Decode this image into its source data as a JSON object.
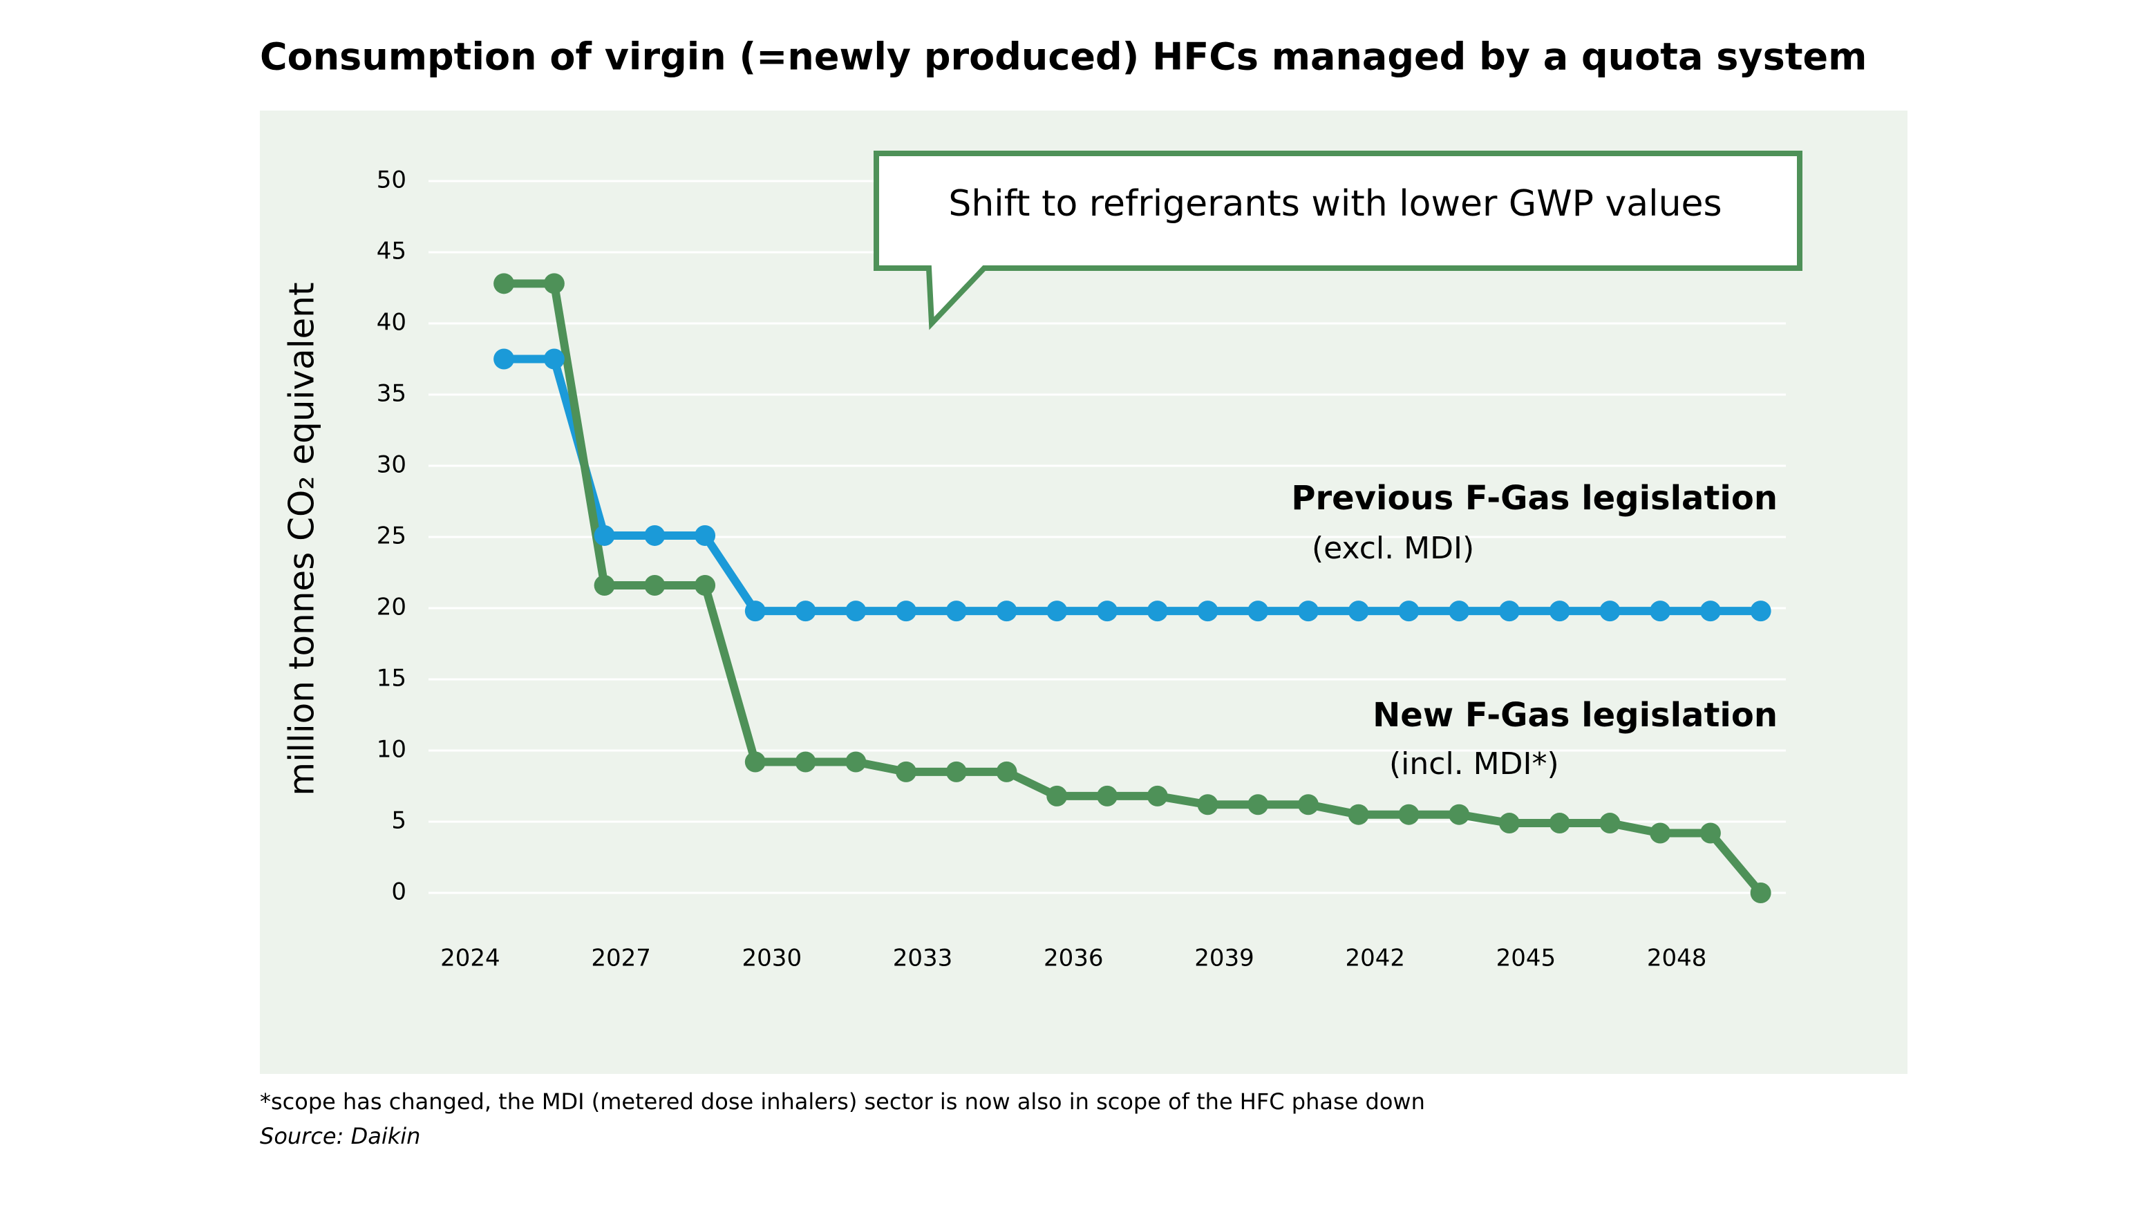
{
  "chart_data": {
    "type": "line",
    "title": "Consumption of virgin (=newly produced) HFCs managed by a quota system",
    "y_label": "million tonnes CO₂ equivalent",
    "annotation": "Shift to refrigerants with lower GWP values",
    "x": [
      2025,
      2026,
      2027,
      2028,
      2029,
      2030,
      2031,
      2032,
      2033,
      2034,
      2035,
      2036,
      2037,
      2038,
      2039,
      2040,
      2041,
      2042,
      2043,
      2044,
      2045,
      2046,
      2047,
      2048,
      2049,
      2050
    ],
    "series": [
      {
        "name": "Previous F-Gas legislation",
        "note": "(excl. MDI)",
        "color": "#1b9ad8",
        "values": [
          37.5,
          37.5,
          25.1,
          25.1,
          25.1,
          19.8,
          19.8,
          19.8,
          19.8,
          19.8,
          19.8,
          19.8,
          19.8,
          19.8,
          19.8,
          19.8,
          19.8,
          19.8,
          19.8,
          19.8,
          19.8,
          19.8,
          19.8,
          19.8,
          19.8,
          19.8
        ]
      },
      {
        "name": "New F-Gas legislation",
        "note": "(incl. MDI*)",
        "color": "#4e9158",
        "values": [
          42.8,
          42.8,
          21.6,
          21.6,
          21.6,
          9.2,
          9.2,
          9.2,
          8.5,
          8.5,
          8.5,
          6.8,
          6.8,
          6.8,
          6.2,
          6.2,
          6.2,
          5.5,
          5.5,
          5.5,
          4.9,
          4.9,
          4.9,
          4.2,
          4.2,
          0
        ]
      }
    ],
    "xlim": [
      2023.5,
      2050.5
    ],
    "xticks": [
      2024,
      2027,
      2030,
      2033,
      2036,
      2039,
      2042,
      2045,
      2048
    ],
    "ylim": [
      0,
      50
    ],
    "yticks": [
      0,
      5,
      10,
      15,
      20,
      25,
      30,
      35,
      40,
      45,
      50
    ],
    "grid": true,
    "footnote": "*scope has changed, the MDI (metered dose inhalers) sector is now also in scope of the HFC phase down",
    "source": "Source: Daikin"
  }
}
